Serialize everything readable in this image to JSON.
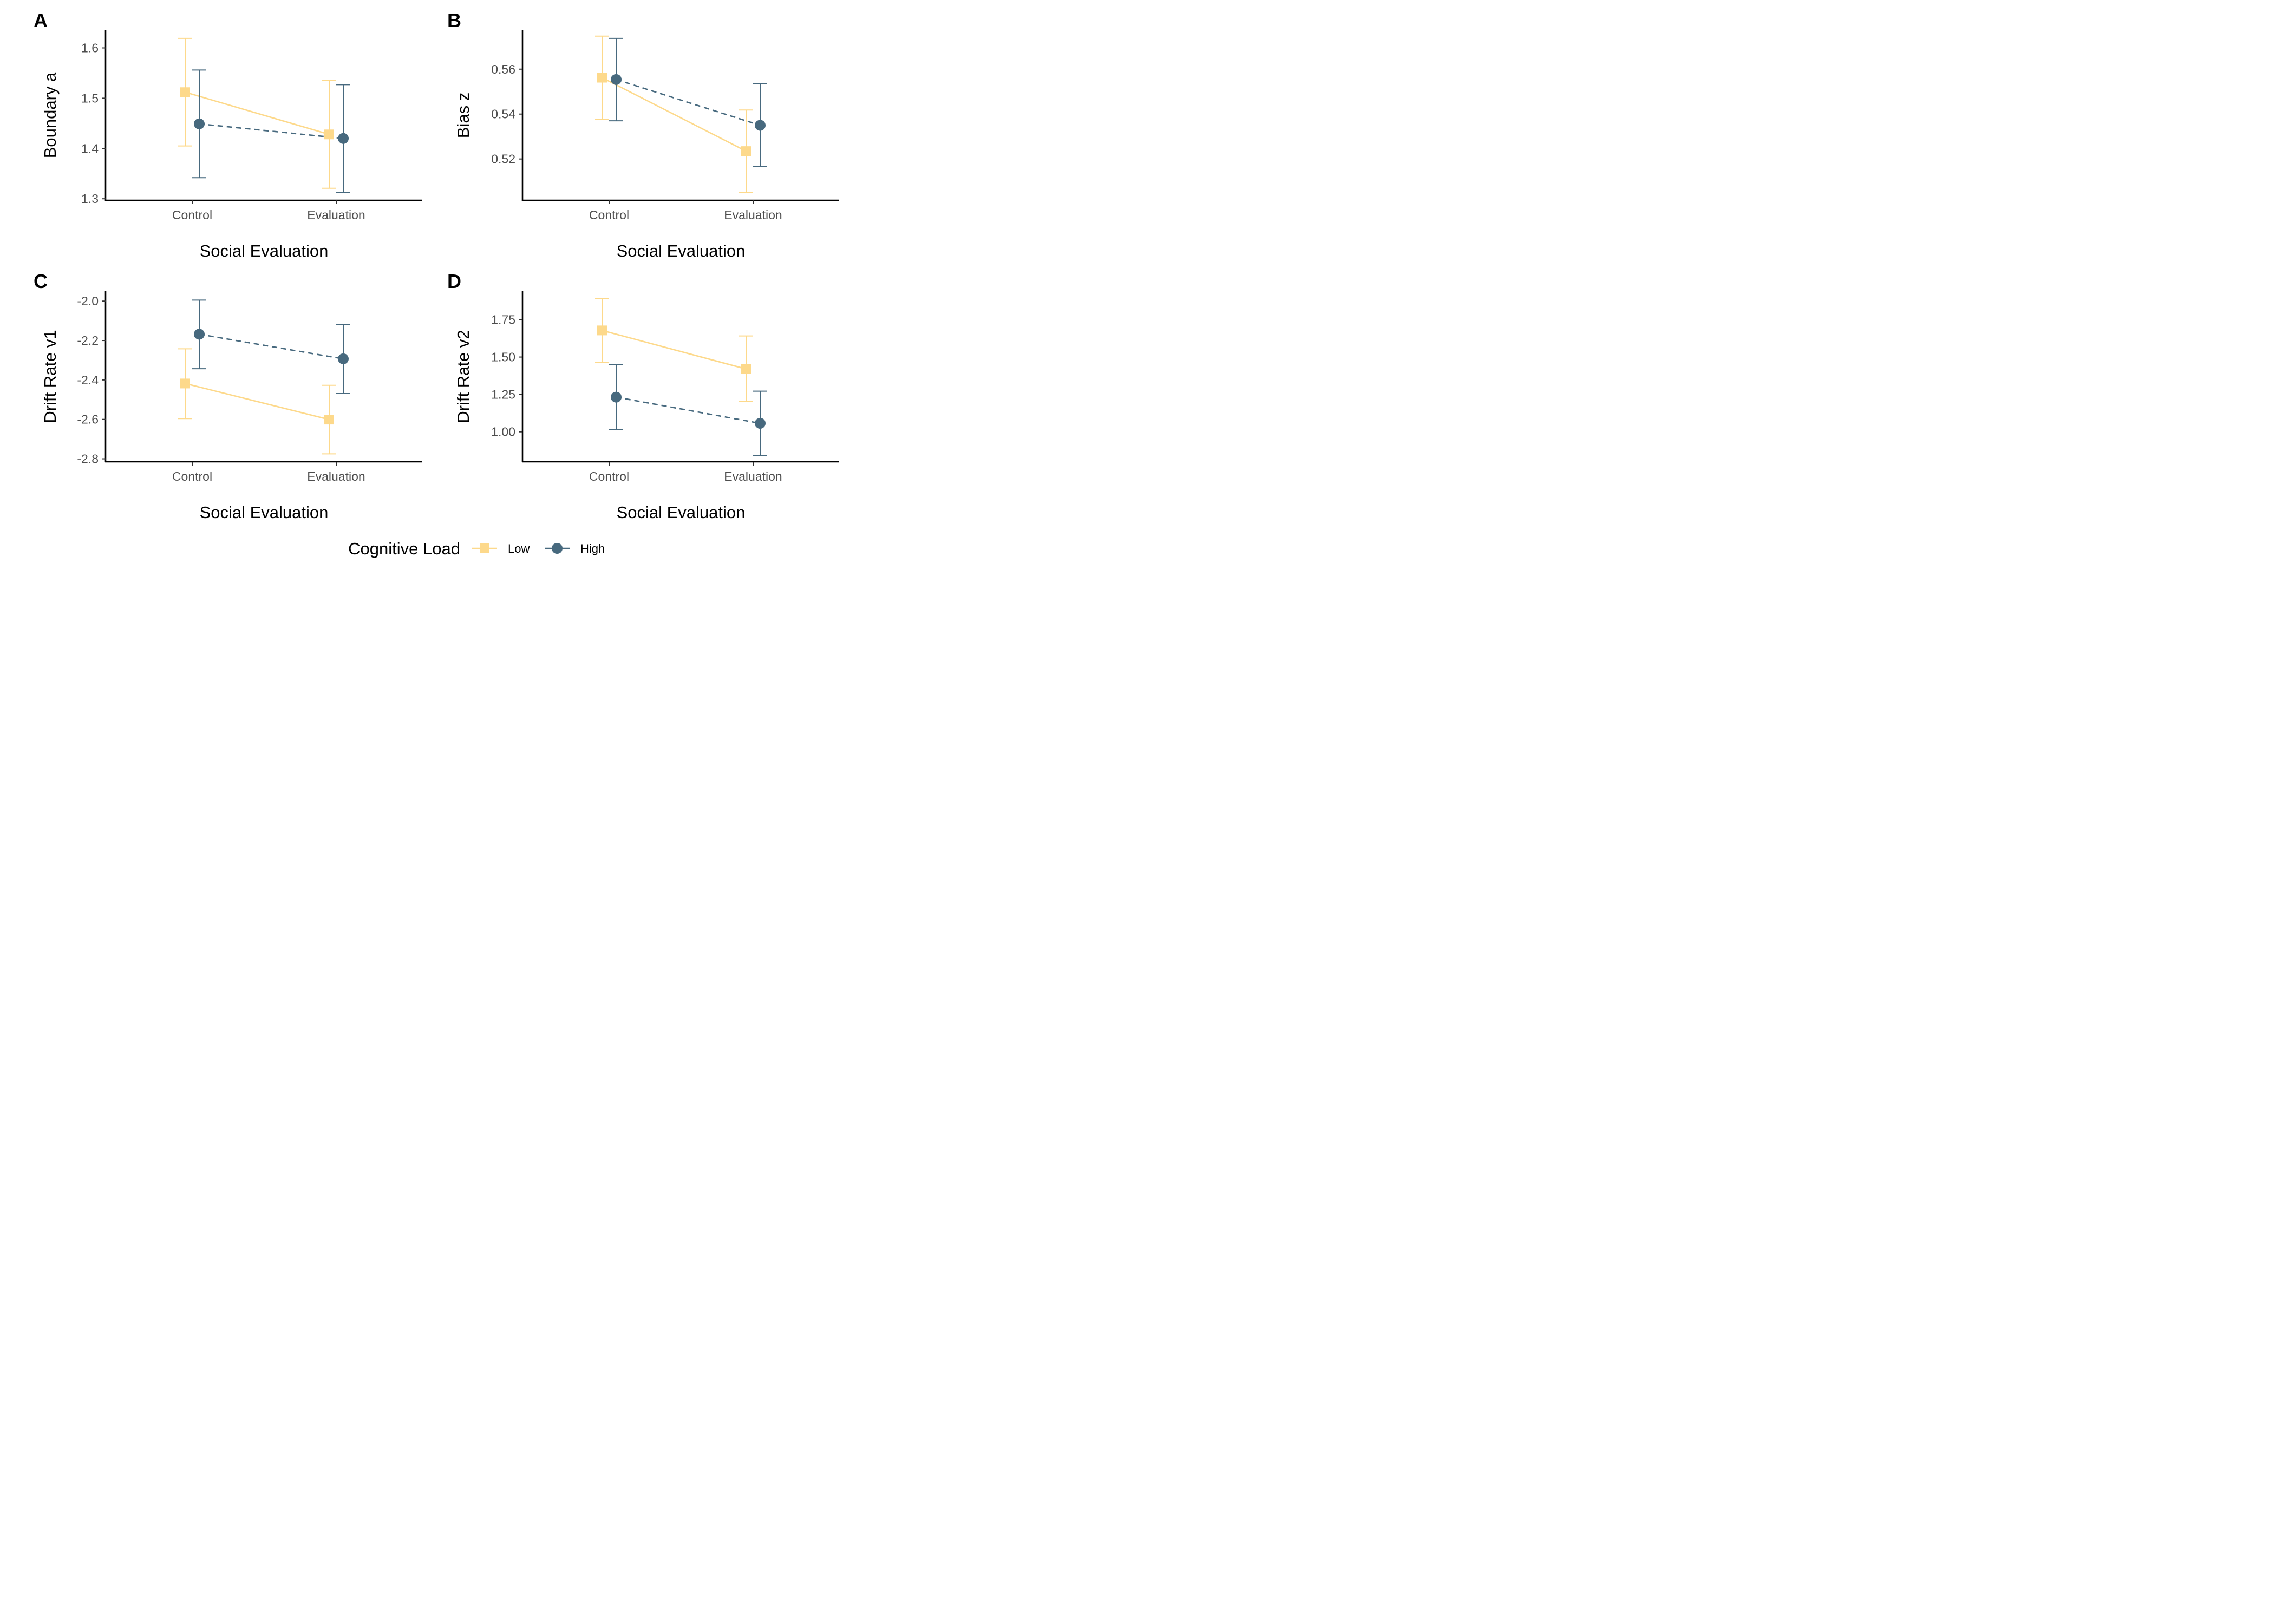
{
  "chart_data": [
    {
      "panel": "A",
      "type": "line",
      "categories": [
        "Control",
        "Evaluation"
      ],
      "xlabel": "Social Evaluation",
      "ylabel": "Boundary a",
      "ylim": [
        1.297,
        1.635
      ],
      "yticks": [
        1.3,
        1.4,
        1.5,
        1.6
      ],
      "ytick_labels": [
        "1.3",
        "1.4",
        "1.5",
        "1.6"
      ],
      "series": [
        {
          "name": "Low",
          "values": [
            1.512,
            1.428
          ],
          "lower": [
            1.405,
            1.321
          ],
          "upper": [
            1.619,
            1.535
          ]
        },
        {
          "name": "High",
          "values": [
            1.449,
            1.42
          ],
          "lower": [
            1.342,
            1.313
          ],
          "upper": [
            1.556,
            1.527
          ]
        }
      ]
    },
    {
      "panel": "B",
      "type": "line",
      "categories": [
        "Control",
        "Evaluation"
      ],
      "xlabel": "Social Evaluation",
      "ylabel": "Bias z",
      "ylim": [
        0.5016,
        0.5773
      ],
      "yticks": [
        0.52,
        0.54,
        0.56
      ],
      "ytick_labels": [
        "0.52",
        "0.54",
        "0.56"
      ],
      "series": [
        {
          "name": "Low",
          "values": [
            0.5562,
            0.5235
          ],
          "lower": [
            0.5377,
            0.505
          ],
          "upper": [
            0.5747,
            0.5418
          ]
        },
        {
          "name": "High",
          "values": [
            0.5554,
            0.535
          ],
          "lower": [
            0.537,
            0.5166
          ],
          "upper": [
            0.5737,
            0.5536
          ]
        }
      ]
    },
    {
      "panel": "C",
      "type": "line",
      "categories": [
        "Control",
        "Evaluation"
      ],
      "xlabel": "Social Evaluation",
      "ylabel": "Drift Rate v1",
      "ylim": [
        -2.815,
        -1.95
      ],
      "yticks": [
        -2.8,
        -2.6,
        -2.4,
        -2.2,
        -2.0
      ],
      "ytick_labels": [
        "-2.8",
        "-2.6",
        "-2.4",
        "-2.2",
        "-2.0"
      ],
      "series": [
        {
          "name": "Low",
          "values": [
            -2.418,
            -2.601
          ],
          "lower": [
            -2.596,
            -2.775
          ],
          "upper": [
            -2.242,
            -2.427
          ]
        },
        {
          "name": "High",
          "values": [
            -2.168,
            -2.293
          ],
          "lower": [
            -2.343,
            -2.469
          ],
          "upper": [
            -1.995,
            -2.119
          ]
        }
      ]
    },
    {
      "panel": "D",
      "type": "line",
      "categories": [
        "Control",
        "Evaluation"
      ],
      "xlabel": "Social Evaluation",
      "ylabel": "Drift Rate v2",
      "ylim": [
        0.8,
        1.94
      ],
      "yticks": [
        1.0,
        1.25,
        1.5,
        1.75
      ],
      "ytick_labels": [
        "1.00",
        "1.25",
        "1.50",
        "1.75"
      ],
      "series": [
        {
          "name": "Low",
          "values": [
            1.678,
            1.42
          ],
          "lower": [
            1.463,
            1.203
          ],
          "upper": [
            1.893,
            1.641
          ]
        },
        {
          "name": "High",
          "values": [
            1.232,
            1.057
          ],
          "lower": [
            1.014,
            0.84
          ],
          "upper": [
            1.451,
            1.272
          ]
        }
      ]
    }
  ],
  "legend": {
    "title": "Cognitive Load",
    "position": "bottom",
    "items": [
      {
        "label": "Low",
        "marker": "square",
        "line": "solid"
      },
      {
        "label": "High",
        "marker": "circle",
        "line": "dashed"
      }
    ]
  },
  "colors": {
    "Low": "#FDD98B",
    "High": "#47697E",
    "axis": "#000000",
    "tick_text": "#4d4d4d"
  }
}
